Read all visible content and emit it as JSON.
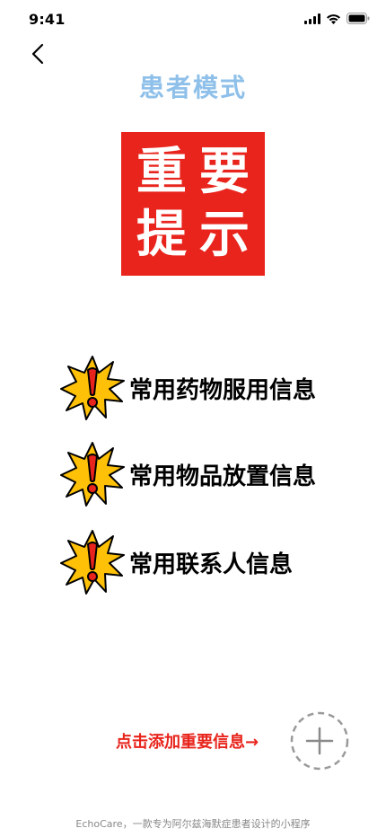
{
  "status_bar": {
    "time": "9:41",
    "icons": [
      "signal-icon",
      "wifi-icon",
      "battery-icon"
    ]
  },
  "nav": {
    "back_icon": "chevron-left-icon"
  },
  "page": {
    "title": "患者模式"
  },
  "notice": {
    "chars": [
      "重",
      "要",
      "提",
      "示"
    ],
    "background_color": "#e8241c"
  },
  "info_items": [
    {
      "label": "常用药物服用信息",
      "icon": "warning-burst-icon"
    },
    {
      "label": "常用物品放置信息",
      "icon": "warning-burst-icon"
    },
    {
      "label": "常用联系人信息",
      "icon": "warning-burst-icon"
    }
  ],
  "add_action": {
    "label": "点击添加重要信息→",
    "icon": "plus-icon"
  },
  "footer": {
    "text": "EchoCare，一款专为阿尔兹海默症患者设计的小程序"
  },
  "colors": {
    "title": "#8ec0ea",
    "accent_red": "#e8241c",
    "burst_yellow": "#ffc107",
    "footer": "#888888"
  }
}
